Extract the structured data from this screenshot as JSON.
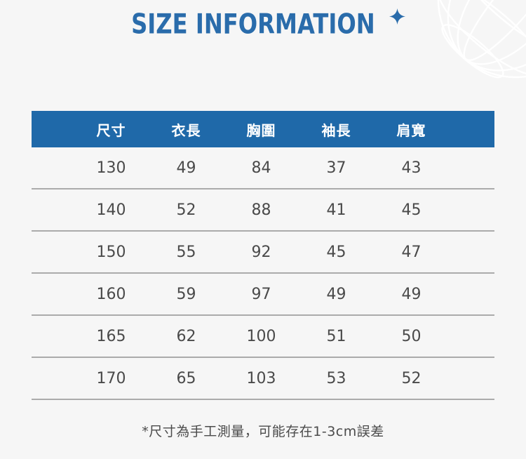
{
  "header": {
    "title": "SIZE INFORMATION",
    "sparkle_icon": "four-point-star",
    "globe_icon": "wireframe-globe"
  },
  "colors": {
    "background": "#f6f6f6",
    "title_blue": "#2a6cab",
    "table_header_bg": "#1f69a9",
    "table_header_text": "#ffffff",
    "row_text": "#4a4a4a",
    "divider_line": "#ababab",
    "globe_line": "#ffffff"
  },
  "table": {
    "columns": [
      "尺寸",
      "衣長",
      "胸圍",
      "袖長",
      "肩寬"
    ],
    "rows": [
      [
        "130",
        "49",
        "84",
        "37",
        "43"
      ],
      [
        "140",
        "52",
        "88",
        "41",
        "45"
      ],
      [
        "150",
        "55",
        "92",
        "45",
        "47"
      ],
      [
        "160",
        "59",
        "97",
        "49",
        "49"
      ],
      [
        "165",
        "62",
        "100",
        "51",
        "50"
      ],
      [
        "170",
        "65",
        "103",
        "53",
        "52"
      ]
    ]
  },
  "footer": {
    "note": "*尺寸為手工測量，可能存在1-3cm誤差"
  },
  "chart_data": {
    "type": "table",
    "title": "SIZE INFORMATION",
    "columns": [
      "尺寸",
      "衣長",
      "胸圍",
      "袖長",
      "肩寬"
    ],
    "rows": [
      [
        130,
        49,
        84,
        37,
        43
      ],
      [
        140,
        52,
        88,
        41,
        45
      ],
      [
        150,
        55,
        92,
        45,
        47
      ],
      [
        160,
        59,
        97,
        49,
        49
      ],
      [
        165,
        62,
        100,
        51,
        50
      ],
      [
        170,
        65,
        103,
        53,
        52
      ]
    ],
    "note": "*尺寸為手工測量，可能存在1-3cm誤差"
  }
}
